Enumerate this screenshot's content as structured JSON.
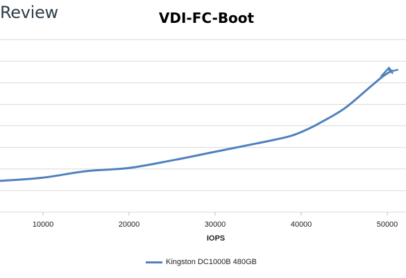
{
  "brand": {
    "text": "Review"
  },
  "chart_data": {
    "type": "line",
    "title": "VDI-FC-Boot",
    "xlabel": "IOPS",
    "ylabel": "",
    "x_ticks": [
      10000,
      20000,
      30000,
      40000,
      50000
    ],
    "xlim": [
      5000,
      52000
    ],
    "ylim": [
      0,
      9
    ],
    "y_gridlines": [
      1,
      2,
      3,
      4,
      5,
      6,
      7,
      8
    ],
    "grid": true,
    "legend_position": "bottom",
    "series": [
      {
        "name": "Kingston DC1000B 480GB",
        "color": "#4f81bd",
        "x": [
          5000,
          10000,
          15000,
          20000,
          25000,
          30000,
          35000,
          38500,
          40500,
          42000,
          45000,
          48000,
          49500,
          50500
        ],
        "y": [
          1.45,
          1.6,
          1.9,
          2.05,
          2.4,
          2.8,
          3.2,
          3.5,
          3.8,
          4.1,
          4.8,
          5.8,
          6.3,
          6.55
        ]
      }
    ],
    "annotation_series": {
      "x": [
        49300,
        50200,
        50600,
        50200,
        50700,
        51200
      ],
      "y": [
        6.3,
        6.7,
        6.45,
        6.6,
        6.55,
        6.6
      ]
    }
  }
}
